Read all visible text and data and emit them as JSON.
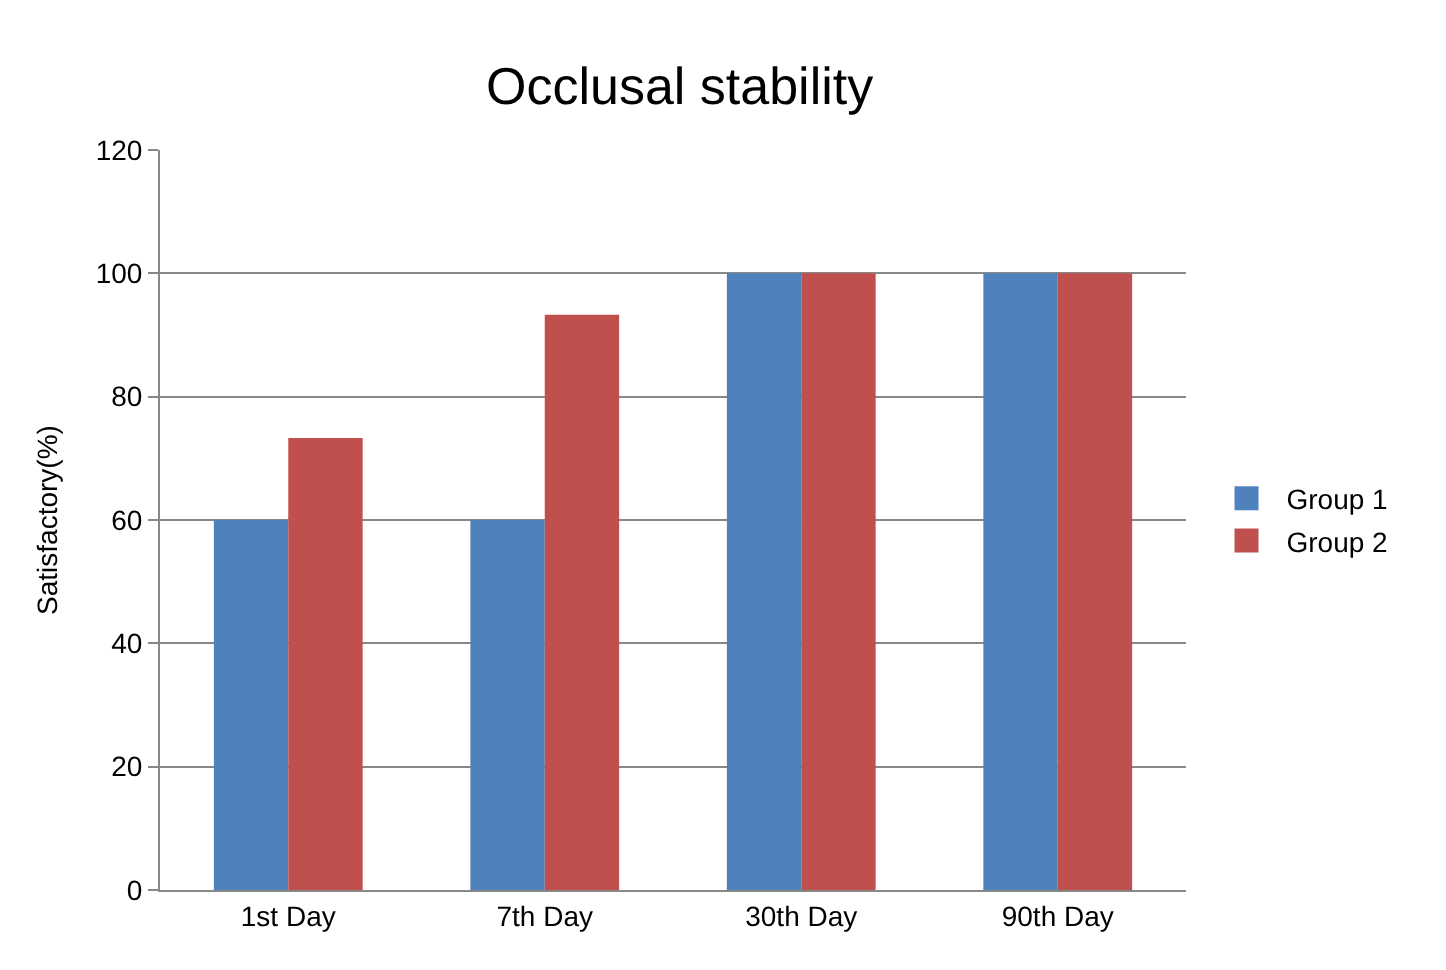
{
  "chart_data": {
    "type": "bar",
    "title": "Occlusal stability",
    "ylabel": "Satisfactory(%)",
    "categories": [
      "1st Day",
      "7th Day",
      "30th Day",
      "90th Day"
    ],
    "series": [
      {
        "name": "Group 1",
        "color": "#4f81bd",
        "values": [
          60,
          60,
          100,
          100
        ]
      },
      {
        "name": "Group 2",
        "color": "#c0504d",
        "values": [
          73.3,
          93.3,
          100,
          100
        ]
      }
    ],
    "ylim": [
      0,
      120
    ],
    "yticks": [
      0,
      20,
      40,
      60,
      80,
      100,
      120
    ],
    "grid": "y",
    "legend": "right"
  }
}
